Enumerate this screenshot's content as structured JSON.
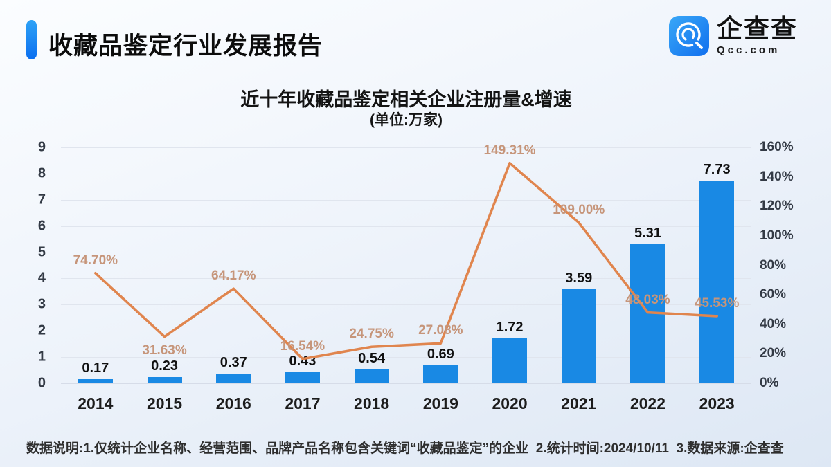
{
  "header": {
    "title": "收藏品鉴定行业发展报告"
  },
  "logo": {
    "name": "企查查",
    "domain": "Qcc.com",
    "icon": "qcc-magnifier-icon",
    "brand_color": "#1b82f2"
  },
  "chart_data": {
    "type": "bar+line combo",
    "title": "近十年收藏品鉴定相关企业注册量&增速",
    "subtitle": "(单位:万家)",
    "categories": [
      "2014",
      "2015",
      "2016",
      "2017",
      "2018",
      "2019",
      "2020",
      "2021",
      "2022",
      "2023"
    ],
    "series": [
      {
        "name": "注册量(万家)",
        "type": "bar",
        "axis": "left",
        "color": "#1989e4",
        "values": [
          0.17,
          0.23,
          0.37,
          0.43,
          0.54,
          0.69,
          1.72,
          3.59,
          5.31,
          7.73
        ],
        "labels": [
          "0.17",
          "0.23",
          "0.37",
          "0.43",
          "0.54",
          "0.69",
          "1.72",
          "3.59",
          "5.31",
          "7.73"
        ]
      },
      {
        "name": "增速",
        "type": "line",
        "axis": "right",
        "color": "#e0854e",
        "label_color": "#c6957a",
        "values": [
          74.7,
          31.63,
          64.17,
          16.54,
          24.75,
          27.08,
          149.31,
          109.0,
          48.03,
          45.53
        ],
        "labels": [
          "74.70%",
          "31.63%",
          "64.17%",
          "16.54%",
          "24.75%",
          "27.08%",
          "149.31%",
          "109.00%",
          "48.03%",
          "45.53%"
        ],
        "label_positions": [
          "above",
          "below",
          "above",
          "above",
          "above",
          "above",
          "above",
          "above",
          "above",
          "above"
        ]
      }
    ],
    "left_axis": {
      "min": 0,
      "max": 9,
      "ticks": [
        "0",
        "1",
        "2",
        "3",
        "4",
        "5",
        "6",
        "7",
        "8",
        "9"
      ]
    },
    "right_axis": {
      "min": 0,
      "max": 160,
      "ticks": [
        "0%",
        "20%",
        "40%",
        "60%",
        "80%",
        "100%",
        "120%",
        "140%",
        "160%"
      ]
    },
    "grid": true,
    "legend": false
  },
  "footer": {
    "note": "数据说明:1.仅统计企业名称、经营范围、品牌产品名称包含关键词“收藏品鉴定”的企业  2.统计时间:2024/10/11  3.数据来源:企查查"
  }
}
